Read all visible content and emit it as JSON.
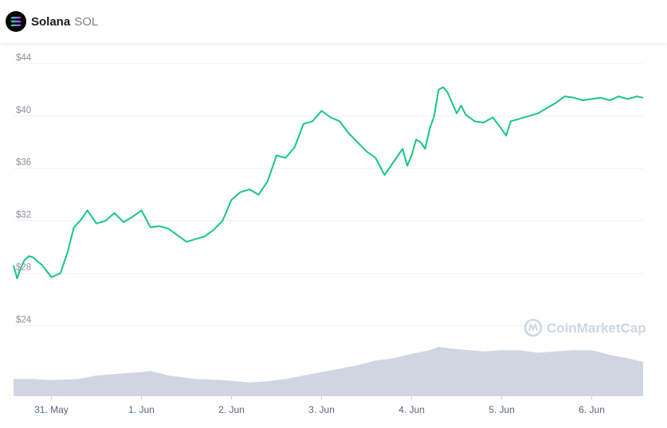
{
  "header": {
    "name": "Solana",
    "symbol": "SOL",
    "logo_icon": "solana-logo-icon"
  },
  "watermark": {
    "text": "CoinMarketCap",
    "icon": "coinmarketcap-logo-icon"
  },
  "colors": {
    "price_line": "#16c784",
    "volume_area": "#cfd6e2",
    "grid": "#eef0f3",
    "axis_text": "#8a8f99"
  },
  "chart_data": {
    "type": "line",
    "title": "",
    "xlabel": "",
    "ylabel": "",
    "ylim": [
      22,
      46
    ],
    "yticks": [
      24,
      28,
      32,
      36,
      40,
      44
    ],
    "ytick_labels": [
      "$24",
      "$28",
      "$32",
      "$36",
      "$40",
      "$44"
    ],
    "xlim_days": [
      -0.42,
      6.57
    ],
    "xtick_labels": [
      "31. May",
      "1. Jun",
      "2. Jun",
      "3. Jun",
      "4. Jun",
      "5. Jun",
      "6. Jun"
    ],
    "grid": true,
    "series": [
      {
        "kind": "price",
        "x": [
          -0.42,
          -0.38,
          -0.34,
          -0.3,
          -0.25,
          -0.2,
          -0.1,
          0.0,
          0.1,
          0.18,
          0.25,
          0.32,
          0.4,
          0.5,
          0.6,
          0.7,
          0.8,
          0.9,
          1.0,
          1.1,
          1.2,
          1.3,
          1.4,
          1.5,
          1.6,
          1.7,
          1.8,
          1.9,
          2.0,
          2.1,
          2.2,
          2.3,
          2.4,
          2.5,
          2.6,
          2.7,
          2.8,
          2.9,
          3.0,
          3.1,
          3.2,
          3.3,
          3.4,
          3.5,
          3.6,
          3.7,
          3.8,
          3.9,
          3.95,
          4.0,
          4.05,
          4.1,
          4.15,
          4.2,
          4.25,
          4.3,
          4.35,
          4.4,
          4.45,
          4.5,
          4.55,
          4.6,
          4.7,
          4.8,
          4.9,
          5.0,
          5.05,
          5.1,
          5.2,
          5.3,
          5.4,
          5.5,
          5.6,
          5.7,
          5.8,
          5.9,
          6.0,
          6.1,
          6.2,
          6.3,
          6.4,
          6.45,
          6.5,
          6.57
        ],
        "y": [
          28.6,
          27.6,
          28.4,
          29.0,
          29.3,
          29.2,
          28.6,
          27.7,
          28.0,
          29.6,
          31.5,
          32.0,
          32.8,
          31.8,
          32.0,
          32.6,
          31.9,
          32.3,
          32.8,
          31.5,
          31.6,
          31.4,
          30.9,
          30.4,
          30.6,
          30.8,
          31.3,
          32.0,
          33.6,
          34.2,
          34.4,
          34.0,
          35.0,
          37.0,
          36.8,
          37.6,
          39.4,
          39.6,
          40.4,
          39.9,
          39.6,
          38.7,
          38.0,
          37.3,
          36.8,
          35.5,
          36.5,
          37.5,
          36.2,
          37.0,
          38.2,
          38.0,
          37.5,
          39.0,
          40.0,
          42.0,
          42.2,
          41.8,
          41.0,
          40.2,
          40.8,
          40.1,
          39.6,
          39.5,
          39.9,
          39.0,
          38.5,
          39.6,
          39.8,
          40.0,
          40.2,
          40.6,
          41.0,
          41.5,
          41.4,
          41.2,
          41.3,
          41.4,
          41.2,
          41.5,
          41.3,
          41.4,
          41.5,
          41.4
        ]
      },
      {
        "kind": "volume",
        "x": [
          -0.42,
          -0.2,
          0.0,
          0.3,
          0.5,
          0.8,
          1.0,
          1.1,
          1.3,
          1.6,
          1.9,
          2.2,
          2.4,
          2.6,
          2.8,
          3.0,
          3.2,
          3.4,
          3.6,
          3.8,
          4.0,
          4.2,
          4.3,
          4.5,
          4.8,
          5.0,
          5.2,
          5.4,
          5.6,
          5.8,
          6.0,
          6.2,
          6.4,
          6.57
        ],
        "y": [
          0.3,
          0.3,
          0.28,
          0.3,
          0.36,
          0.4,
          0.42,
          0.44,
          0.36,
          0.3,
          0.28,
          0.24,
          0.26,
          0.3,
          0.36,
          0.42,
          0.48,
          0.54,
          0.62,
          0.66,
          0.74,
          0.8,
          0.86,
          0.82,
          0.78,
          0.8,
          0.8,
          0.76,
          0.78,
          0.8,
          0.8,
          0.72,
          0.66,
          0.6
        ]
      }
    ]
  }
}
